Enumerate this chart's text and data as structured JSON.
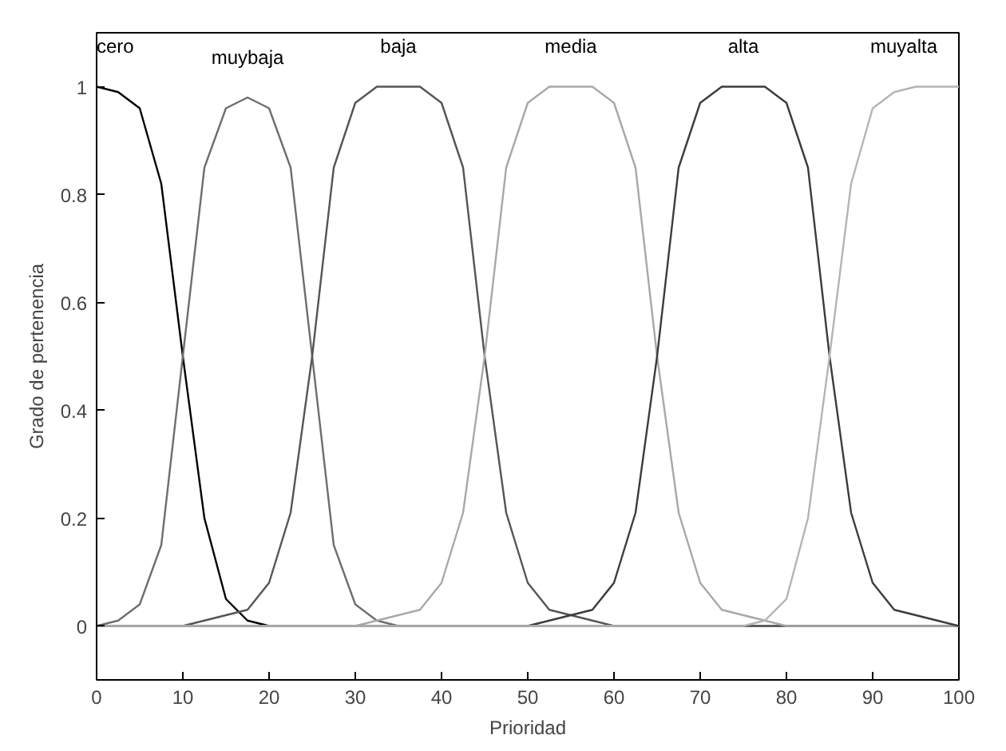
{
  "chart_data": {
    "type": "line",
    "xlabel": "Prioridad",
    "ylabel": "Grado de pertenencia",
    "x": [
      0,
      2.5,
      5,
      7.5,
      10,
      12.5,
      15,
      17.5,
      20,
      22.5,
      25,
      27.5,
      30,
      32.5,
      35,
      37.5,
      40,
      42.5,
      45,
      47.5,
      50,
      52.5,
      55,
      57.5,
      60,
      62.5,
      65,
      67.5,
      70,
      72.5,
      75,
      77.5,
      80,
      82.5,
      85,
      87.5,
      90,
      92.5,
      95,
      97.5,
      100
    ],
    "xlim": [
      0,
      100
    ],
    "xticks": [
      0,
      10,
      20,
      30,
      40,
      50,
      60,
      70,
      80,
      90,
      100
    ],
    "ylim": [
      -0.1,
      1.1
    ],
    "yticks": [
      0,
      0.2,
      0.4,
      0.6,
      0.8,
      1
    ],
    "grid": false,
    "marker": "none",
    "line_style": "solid",
    "series": [
      {
        "name": "cero",
        "color": "#000000",
        "values": [
          1,
          0.99,
          0.96,
          0.82,
          0.5,
          0.2,
          0.05,
          0.01,
          0,
          null,
          null,
          null,
          null,
          null,
          null,
          null,
          null,
          null,
          null,
          null,
          null,
          null,
          null,
          null,
          null,
          null,
          null,
          null,
          null,
          null,
          null,
          null,
          null,
          null,
          null,
          null,
          null,
          null,
          null,
          null,
          null
        ]
      },
      {
        "name": "muybaja",
        "color": "#6e6e6e",
        "values": [
          0,
          0.01,
          0.04,
          0.15,
          0.5,
          0.85,
          0.96,
          0.98,
          0.96,
          0.85,
          0.5,
          0.15,
          0.04,
          0.01,
          0,
          0,
          0,
          0,
          0,
          0,
          0,
          0,
          0,
          0,
          0,
          0,
          0,
          0,
          0,
          0,
          0,
          0,
          0,
          0,
          0,
          0,
          0,
          0,
          0,
          0,
          0
        ]
      },
      {
        "name": "baja",
        "color": "#555555",
        "values": [
          0,
          0,
          0,
          0,
          0,
          0.01,
          0.02,
          0.03,
          0.08,
          0.21,
          0.5,
          0.85,
          0.97,
          1,
          1,
          1,
          0.97,
          0.85,
          0.5,
          0.21,
          0.08,
          0.03,
          0.02,
          0.01,
          0,
          0,
          0,
          0,
          0,
          0,
          0,
          0,
          0,
          0,
          0,
          0,
          0,
          0,
          0,
          0,
          0
        ]
      },
      {
        "name": "media",
        "color": "#a8a8a8",
        "values": [
          0,
          0,
          0,
          0,
          0,
          0,
          0,
          0,
          0,
          0,
          0,
          0,
          0,
          0.01,
          0.02,
          0.03,
          0.08,
          0.21,
          0.5,
          0.85,
          0.97,
          1,
          1,
          1,
          0.97,
          0.85,
          0.5,
          0.21,
          0.08,
          0.03,
          0.02,
          0.01,
          0,
          0,
          0,
          0,
          0,
          0,
          0,
          0,
          0
        ]
      },
      {
        "name": "alta",
        "color": "#3c3c3c",
        "values": [
          0,
          0,
          0,
          0,
          0,
          0,
          0,
          0,
          0,
          0,
          0,
          0,
          0,
          0,
          0,
          0,
          0,
          0,
          0,
          0,
          0,
          0.01,
          0.02,
          0.03,
          0.08,
          0.21,
          0.5,
          0.85,
          0.97,
          1,
          1,
          1,
          0.97,
          0.85,
          0.5,
          0.21,
          0.08,
          0.03,
          0.02,
          0.01,
          0
        ]
      },
      {
        "name": "muyalta",
        "color": "#b4b4b4",
        "values": [
          0,
          0,
          0,
          0,
          0,
          0,
          0,
          0,
          0,
          0,
          0,
          0,
          0,
          0,
          0,
          0,
          0,
          0,
          0,
          0,
          0,
          0,
          0,
          0,
          0,
          0,
          0,
          0,
          0,
          0,
          0,
          0.01,
          0.05,
          0.2,
          0.5,
          0.82,
          0.96,
          0.99,
          1,
          1,
          1
        ]
      }
    ]
  }
}
